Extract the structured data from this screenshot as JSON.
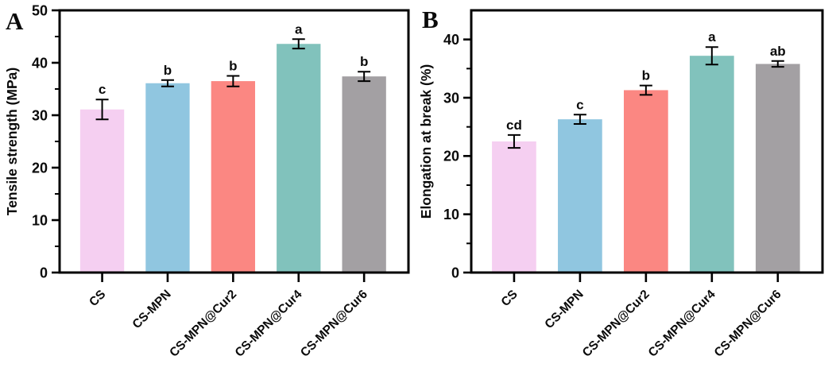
{
  "figure": {
    "background": "#ffffff",
    "axis_color": "#000000",
    "text_color": "#0a0a0a"
  },
  "chart_data": [
    {
      "type": "bar",
      "panel_label": "A",
      "title": "",
      "xlabel": "",
      "ylabel": "Tensile strength (MPa)",
      "categories": [
        "CS",
        "CS-MPN",
        "CS-MPN@Cur2",
        "CS-MPN@Cur4",
        "CS-MPN@Cur6"
      ],
      "values": [
        31.1,
        36.1,
        36.5,
        43.6,
        37.4
      ],
      "errors": [
        1.9,
        0.6,
        1.0,
        0.9,
        0.9
      ],
      "sig_labels": [
        "c",
        "b",
        "b",
        "a",
        "b"
      ],
      "bar_colors": [
        "#f5cff1",
        "#90c6e0",
        "#fb8782",
        "#81c2bc",
        "#a3a0a3"
      ],
      "ylim": [
        0,
        50
      ],
      "ytick_step": 10,
      "yminor_step": 5,
      "ytick_labels": [
        "0",
        "10",
        "20",
        "30",
        "40",
        "50"
      ],
      "grid": false,
      "legend": null
    },
    {
      "type": "bar",
      "panel_label": "B",
      "title": "",
      "xlabel": "",
      "ylabel": "Elongation at break (%)",
      "categories": [
        "CS",
        "CS-MPN",
        "CS-MPN@Cur2",
        "CS-MPN@Cur4",
        "CS-MPN@Cur6"
      ],
      "values": [
        22.5,
        26.3,
        31.3,
        37.2,
        35.8
      ],
      "errors": [
        1.1,
        0.8,
        0.8,
        1.5,
        0.5
      ],
      "sig_labels": [
        "cd",
        "c",
        "b",
        "a",
        "ab"
      ],
      "bar_colors": [
        "#f5cff1",
        "#90c6e0",
        "#fb8782",
        "#81c2bc",
        "#a3a0a3"
      ],
      "ylim": [
        0,
        45
      ],
      "ytick_step": 10,
      "yminor_step": 5,
      "ytick_labels": [
        "0",
        "10",
        "20",
        "30",
        "40"
      ],
      "grid": false,
      "legend": null
    }
  ]
}
